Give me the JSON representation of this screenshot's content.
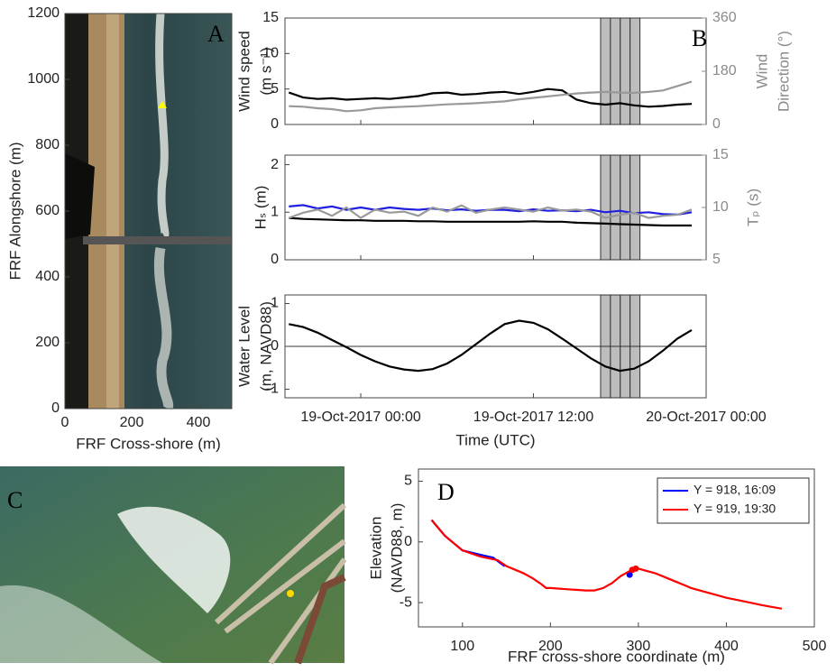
{
  "chart_data": [
    {
      "type": "image",
      "panel_label": "A",
      "xlabel": "FRF Cross-shore (m)",
      "ylabel": "FRF Alongshore (m)",
      "xlim": [
        0,
        500
      ],
      "ylim": [
        0,
        1200
      ],
      "xticks": [
        0,
        200,
        400
      ],
      "yticks": [
        0,
        200,
        400,
        600,
        800,
        1000,
        1200
      ]
    },
    {
      "type": "line",
      "panel_label": "B",
      "ylabel": [
        "Wind speed",
        "(m s⁻¹)"
      ],
      "y2label": [
        "Wind",
        "Direction (°)"
      ],
      "x": [
        "2017-10-18T19:00",
        "2017-10-18T20:00",
        "2017-10-18T21:00",
        "2017-10-18T22:00",
        "2017-10-18T23:00",
        "2017-10-19T00:00",
        "2017-10-19T01:00",
        "2017-10-19T02:00",
        "2017-10-19T03:00",
        "2017-10-19T04:00",
        "2017-10-19T05:00",
        "2017-10-19T06:00",
        "2017-10-19T07:00",
        "2017-10-19T08:00",
        "2017-10-19T09:00",
        "2017-10-19T10:00",
        "2017-10-19T11:00",
        "2017-10-19T12:00",
        "2017-10-19T13:00",
        "2017-10-19T14:00",
        "2017-10-19T15:00",
        "2017-10-19T16:00",
        "2017-10-19T17:00",
        "2017-10-19T18:00",
        "2017-10-19T19:00",
        "2017-10-19T20:00",
        "2017-10-19T21:00",
        "2017-10-19T22:00",
        "2017-10-19T23:00"
      ],
      "xlim": [
        "2017-10-18T18:44",
        "2017-10-20T00:00"
      ],
      "ylim": [
        0,
        15
      ],
      "yticks": [
        0,
        5,
        10,
        15
      ],
      "y2lim": [
        0,
        360
      ],
      "y2ticks": [
        0,
        180,
        360
      ],
      "series": [
        {
          "color": "#000000",
          "values": [
            4.5,
            3.8,
            3.6,
            3.7,
            3.5,
            3.6,
            3.7,
            3.6,
            3.8,
            4.0,
            4.4,
            4.5,
            4.2,
            4.3,
            4.5,
            4.6,
            4.3,
            4.6,
            5.0,
            4.8,
            3.5,
            3.0,
            2.8,
            3.0,
            2.7,
            2.5,
            2.6,
            2.8,
            2.9
          ]
        },
        {
          "color": "#999999",
          "axis": "y2",
          "values": [
            62,
            60,
            55,
            52,
            45,
            48,
            55,
            58,
            60,
            62,
            65,
            68,
            70,
            72,
            75,
            78,
            85,
            90,
            95,
            100,
            105,
            108,
            110,
            108,
            107,
            110,
            115,
            130,
            145
          ]
        }
      ]
    },
    {
      "type": "line",
      "ylabel": "Hₛ (m)",
      "y2label": "Tₚ (s)",
      "x": [
        "2017-10-18T19:00",
        "2017-10-18T20:00",
        "2017-10-18T21:00",
        "2017-10-18T22:00",
        "2017-10-18T23:00",
        "2017-10-19T00:00",
        "2017-10-19T01:00",
        "2017-10-19T02:00",
        "2017-10-19T03:00",
        "2017-10-19T04:00",
        "2017-10-19T05:00",
        "2017-10-19T06:00",
        "2017-10-19T07:00",
        "2017-10-19T08:00",
        "2017-10-19T09:00",
        "2017-10-19T10:00",
        "2017-10-19T11:00",
        "2017-10-19T12:00",
        "2017-10-19T13:00",
        "2017-10-19T14:00",
        "2017-10-19T15:00",
        "2017-10-19T16:00",
        "2017-10-19T17:00",
        "2017-10-19T18:00",
        "2017-10-19T19:00",
        "2017-10-19T20:00",
        "2017-10-19T21:00",
        "2017-10-19T22:00",
        "2017-10-19T23:00"
      ],
      "xlim": [
        "2017-10-18T18:44",
        "2017-10-20T00:00"
      ],
      "ylim": [
        0,
        2.2
      ],
      "yticks": [
        0,
        1,
        2
      ],
      "y2lim": [
        5,
        15
      ],
      "y2ticks": [
        5,
        10,
        15
      ],
      "series": [
        {
          "color": "#1f1fe0",
          "values": [
            1.12,
            1.15,
            1.08,
            1.12,
            1.05,
            1.1,
            1.05,
            1.1,
            1.07,
            1.05,
            1.08,
            1.04,
            1.06,
            1.03,
            1.05,
            1.05,
            1.02,
            1.06,
            1.03,
            1.04,
            1.02,
            1.05,
            1.0,
            1.03,
            0.98,
            1.0,
            0.96,
            0.95,
            1.0
          ]
        },
        {
          "color": "#000000",
          "values": [
            0.88,
            0.86,
            0.85,
            0.84,
            0.83,
            0.83,
            0.82,
            0.82,
            0.82,
            0.81,
            0.81,
            0.8,
            0.8,
            0.8,
            0.8,
            0.8,
            0.8,
            0.81,
            0.8,
            0.8,
            0.78,
            0.77,
            0.76,
            0.75,
            0.74,
            0.73,
            0.72,
            0.72,
            0.72
          ]
        },
        {
          "color": "#999999",
          "axis": "y2",
          "values": [
            9.0,
            9.5,
            9.8,
            9.2,
            10.0,
            9.0,
            9.8,
            9.5,
            9.6,
            9.2,
            10.0,
            9.6,
            10.2,
            9.5,
            9.8,
            10.0,
            9.8,
            9.6,
            10.0,
            9.7,
            9.8,
            9.6,
            9.0,
            9.3,
            9.5,
            9.0,
            9.2,
            9.3,
            9.8
          ]
        }
      ]
    },
    {
      "type": "line",
      "ylabel": [
        "Water Level",
        "(m, NAVD88)"
      ],
      "xlabel": "Time (UTC)",
      "x": [
        "2017-10-18T19:00",
        "2017-10-18T20:00",
        "2017-10-18T21:00",
        "2017-10-18T22:00",
        "2017-10-18T23:00",
        "2017-10-19T00:00",
        "2017-10-19T01:00",
        "2017-10-19T02:00",
        "2017-10-19T03:00",
        "2017-10-19T04:00",
        "2017-10-19T05:00",
        "2017-10-19T06:00",
        "2017-10-19T07:00",
        "2017-10-19T08:00",
        "2017-10-19T09:00",
        "2017-10-19T10:00",
        "2017-10-19T11:00",
        "2017-10-19T12:00",
        "2017-10-19T13:00",
        "2017-10-19T14:00",
        "2017-10-19T15:00",
        "2017-10-19T16:00",
        "2017-10-19T17:00",
        "2017-10-19T18:00",
        "2017-10-19T19:00",
        "2017-10-19T20:00",
        "2017-10-19T21:00",
        "2017-10-19T22:00",
        "2017-10-19T23:00"
      ],
      "xlim": [
        "2017-10-18T18:44",
        "2017-10-20T00:00"
      ],
      "ylim": [
        -1.2,
        1.2
      ],
      "yticks": [
        -1,
        0,
        1
      ],
      "hline": 0,
      "xticks": [
        {
          "value": "2017-10-19T00:00",
          "label": "19-Oct-2017 00:00"
        },
        {
          "value": "2017-10-19T12:00",
          "label": "19-Oct-2017 12:00"
        },
        {
          "value": "2017-10-20T00:00",
          "label": "20-Oct-2017 00:00"
        }
      ],
      "shaded_intervals": [
        [
          "2017-10-19T16:40",
          "2017-10-19T17:21"
        ],
        [
          "2017-10-19T17:21",
          "2017-10-19T18:02"
        ],
        [
          "2017-10-19T18:02",
          "2017-10-19T18:43"
        ],
        [
          "2017-10-19T18:43",
          "2017-10-19T19:24"
        ]
      ],
      "series": [
        {
          "color": "#000000",
          "values": [
            0.52,
            0.45,
            0.32,
            0.15,
            -0.02,
            -0.2,
            -0.35,
            -0.47,
            -0.54,
            -0.57,
            -0.53,
            -0.4,
            -0.2,
            0.05,
            0.3,
            0.52,
            0.6,
            0.55,
            0.4,
            0.18,
            -0.05,
            -0.28,
            -0.47,
            -0.57,
            -0.52,
            -0.35,
            -0.1,
            0.18,
            0.38
          ]
        }
      ]
    },
    {
      "type": "image",
      "panel_label": "C"
    },
    {
      "type": "line",
      "panel_label": "D",
      "xlabel": "FRF cross-shore coordinate (m)",
      "ylabel": [
        "Elevation",
        "(NAVD88, m)"
      ],
      "xlim": [
        50,
        500
      ],
      "ylim": [
        -7,
        6
      ],
      "xticks": [
        100,
        200,
        300,
        400,
        500
      ],
      "yticks": [
        -5,
        0,
        5
      ],
      "legend": "northeast",
      "series": [
        {
          "name": "Y = 918, 16:09",
          "color": "#0000ff",
          "x": [
            65,
            80,
            100,
            120,
            135,
            148
          ],
          "values": [
            1.8,
            0.5,
            -0.7,
            -1.05,
            -1.3,
            -2.0
          ],
          "point_x": [
            290
          ],
          "point_y": [
            -2.7
          ]
        },
        {
          "name": "Y = 919, 19:30",
          "color": "#ff0000",
          "x": [
            65,
            80,
            100,
            120,
            140,
            150,
            160,
            170,
            180,
            190,
            195,
            200,
            220,
            240,
            250,
            260,
            270,
            280,
            290,
            300,
            320,
            340,
            360,
            380,
            400,
            420,
            440,
            463
          ],
          "values": [
            1.8,
            0.5,
            -0.7,
            -1.2,
            -1.5,
            -2.0,
            -2.3,
            -2.6,
            -3.0,
            -3.5,
            -3.8,
            -3.8,
            -3.9,
            -4.0,
            -4.0,
            -3.8,
            -3.4,
            -2.8,
            -2.4,
            -2.2,
            -2.6,
            -3.2,
            -3.8,
            -4.2,
            -4.6,
            -4.9,
            -5.2,
            -5.5
          ],
          "point_x": [
            293,
            297
          ],
          "point_y": [
            -2.3,
            -2.2
          ]
        }
      ]
    }
  ]
}
